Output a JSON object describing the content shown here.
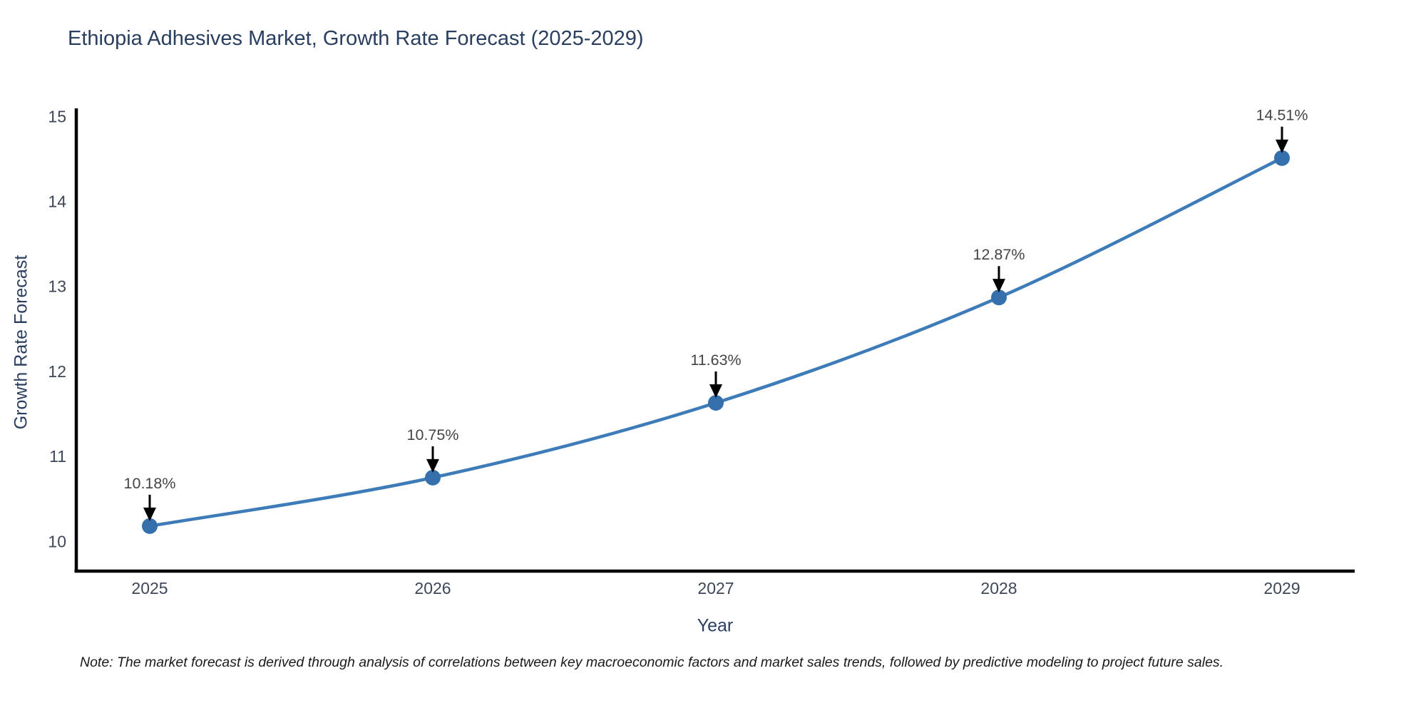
{
  "title": "Ethiopia Adhesives Market, Growth Rate Forecast (2025-2029)",
  "note": "Note: The market forecast is derived through analysis of correlations between key macroeconomic factors and market sales trends, followed by predictive modeling to project future sales.",
  "chart_data": {
    "type": "line",
    "title": "Ethiopia Adhesives Market, Growth Rate Forecast (2025-2029)",
    "xlabel": "Year",
    "ylabel": "Growth Rate Forecast",
    "categories": [
      "2025",
      "2026",
      "2027",
      "2028",
      "2029"
    ],
    "series": [
      {
        "name": "Growth Rate Forecast",
        "values": [
          10.18,
          10.75,
          11.63,
          12.87,
          14.51
        ]
      }
    ],
    "point_labels": [
      "10.18%",
      "10.75%",
      "11.63%",
      "12.87%",
      "14.51%"
    ],
    "yticks": [
      10,
      11,
      12,
      13,
      14,
      15
    ],
    "ylim": [
      9.65,
      15.05
    ],
    "grid": false,
    "legend_position": "none",
    "marker_style": "circle",
    "annotation_arrows": "down",
    "colors": {
      "line": "#3e7cb9",
      "marker": "#356fac",
      "axis_line": "#000000",
      "tick_text": "#3d4758",
      "annotation_text": "#444444",
      "title_text": "#2a3f5f",
      "background": "#ffffff"
    }
  }
}
